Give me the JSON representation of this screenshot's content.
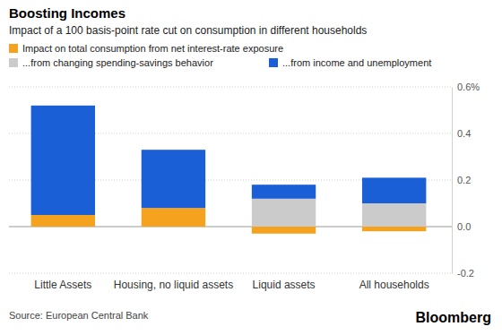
{
  "chart_data": {
    "type": "bar",
    "title": "Boosting Incomes",
    "subtitle": "Impact of a 100 basis-point rate cut on consumption in different households",
    "categories": [
      "Little Assets",
      "Housing, no liquid assets",
      "Liquid assets",
      "All households"
    ],
    "series": [
      {
        "name": "Impact on total consumption from net interest-rate exposure",
        "color": "#f5a31e",
        "values": [
          0.05,
          0.08,
          -0.03,
          -0.02
        ]
      },
      {
        "name": "...from changing spending-savings behavior",
        "color": "#cbcbcb",
        "values": [
          0,
          0,
          0.12,
          0.1
        ]
      },
      {
        "name": "...from income and unemployment",
        "color": "#1a5fd6",
        "values": [
          0.47,
          0.25,
          0.06,
          0.11
        ]
      }
    ],
    "stacked": true,
    "ylim": [
      -0.2,
      0.6
    ],
    "yticks": [
      -0.2,
      {
        "value": 0,
        "label": "0.0"
      },
      0.2,
      0.4,
      {
        "value": 0.6,
        "label": "0.6%"
      }
    ],
    "grid": true,
    "legend": "top-left",
    "source": "Source: European Central Bank",
    "credit": "Bloomberg"
  }
}
